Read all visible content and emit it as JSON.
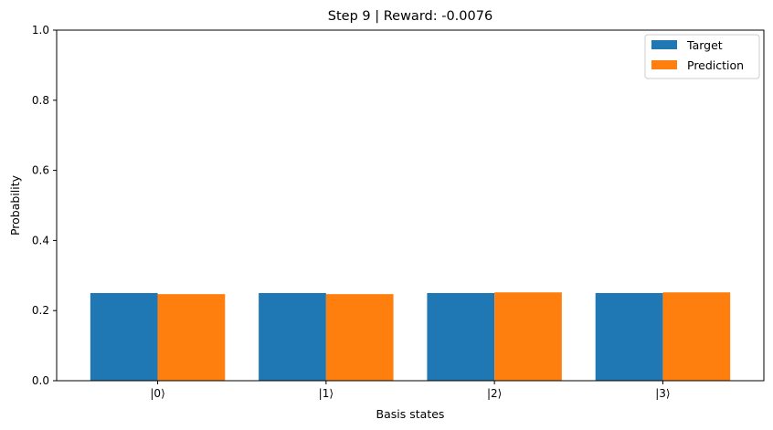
{
  "chart_data": {
    "type": "bar",
    "title": "Step 9 | Reward: -0.0076",
    "xlabel": "Basis states",
    "ylabel": "Probability",
    "categories": [
      "|0⟩",
      "|1⟩",
      "|2⟩",
      "|3⟩"
    ],
    "ylim": [
      0,
      1.0
    ],
    "yticks": [
      "0.0",
      "0.2",
      "0.4",
      "0.6",
      "0.8",
      "1.0"
    ],
    "grid": false,
    "legend_position": "top-right",
    "series": [
      {
        "name": "Target",
        "color": "#1f77b4",
        "values": [
          0.25,
          0.25,
          0.25,
          0.25
        ]
      },
      {
        "name": "Prediction",
        "color": "#ff7f0e",
        "values": [
          0.247,
          0.247,
          0.252,
          0.252
        ]
      }
    ]
  }
}
